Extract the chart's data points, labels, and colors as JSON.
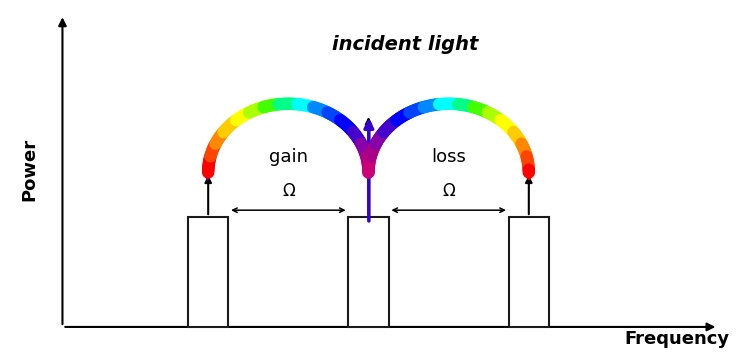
{
  "xlabel": "Frequency",
  "ylabel": "Power",
  "bar_positions": [
    0.28,
    0.5,
    0.72
  ],
  "bar_height": 0.32,
  "bar_width": 0.055,
  "bar_bottom": 0.08,
  "omega_label": "Ω",
  "gain_label": "gain",
  "loss_label": "loss",
  "incident_label": "incident light",
  "xlim": [
    0.0,
    1.0
  ],
  "ylim": [
    0.0,
    1.0
  ],
  "bar_color": "#1a1a1a",
  "bg_color": "#ffffff",
  "font_size_labels": 13,
  "font_size_axis": 13,
  "rainbow_colors": [
    "#FF0000",
    "#FF4400",
    "#FF8800",
    "#FFCC00",
    "#FFFF00",
    "#AAFF00",
    "#44FF00",
    "#00FF88",
    "#00FFFF",
    "#0088FF",
    "#0044FF",
    "#0000FF",
    "#4400CC",
    "#8800AA",
    "#AA0088",
    "#CC0077"
  ]
}
